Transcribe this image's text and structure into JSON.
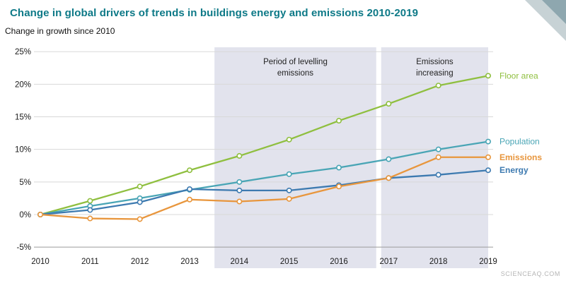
{
  "page": {
    "title": "Change in global drivers of trends in buildings energy and emissions 2010-2019",
    "subtitle": "Change in growth since 2010",
    "watermark": "SCIENCEAQ.COM"
  },
  "colors": {
    "title": "#0d7987",
    "floor_area": "#8fbf3f",
    "population": "#49a5b5",
    "emissions": "#e8963d",
    "energy": "#3d7ab0",
    "band": "#e2e3ed",
    "grid": "#d8d8d8",
    "axis_text": "#1a1a1a",
    "annotation_text": "#222222",
    "watermark": "#b5b5b5"
  },
  "chart_data": {
    "type": "line",
    "title": "Change in global drivers of trends in buildings energy and emissions 2010-2019",
    "ylabel": "Change in growth since 2010",
    "xlabel": "",
    "grid": true,
    "legend_position": "right",
    "x": [
      2010,
      2011,
      2012,
      2013,
      2014,
      2015,
      2016,
      2017,
      2018,
      2019
    ],
    "ylim": [
      -5,
      25
    ],
    "yticks": [
      -5,
      0,
      5,
      10,
      15,
      20,
      25
    ],
    "ytick_labels": [
      "-5%",
      "0%",
      "5%",
      "10%",
      "15%",
      "20%",
      "25%"
    ],
    "series": [
      {
        "name": "Floor area",
        "color_key": "floor_area",
        "bold_label": false,
        "values": [
          0,
          2.1,
          4.3,
          6.8,
          9.0,
          11.5,
          14.4,
          17.0,
          19.8,
          21.3
        ]
      },
      {
        "name": "Population",
        "color_key": "population",
        "bold_label": false,
        "values": [
          0,
          1.3,
          2.5,
          3.8,
          5.0,
          6.2,
          7.2,
          8.5,
          10.0,
          11.2
        ]
      },
      {
        "name": "Energy",
        "color_key": "energy",
        "bold_label": true,
        "values": [
          0,
          0.7,
          1.9,
          3.9,
          3.7,
          3.7,
          4.5,
          5.6,
          6.1,
          6.8
        ]
      },
      {
        "name": "Emissions",
        "color_key": "emissions",
        "bold_label": true,
        "values": [
          0,
          -0.6,
          -0.7,
          2.3,
          2.0,
          2.4,
          4.3,
          5.6,
          8.8,
          8.8
        ]
      }
    ],
    "bands": [
      {
        "label_lines": [
          "Period of levelling",
          "emissions"
        ],
        "x_start": 2013.5,
        "x_end": 2016.75
      },
      {
        "label_lines": [
          "Emissions",
          "increasing"
        ],
        "x_start": 2016.85,
        "x_end": 2019.0
      }
    ]
  }
}
